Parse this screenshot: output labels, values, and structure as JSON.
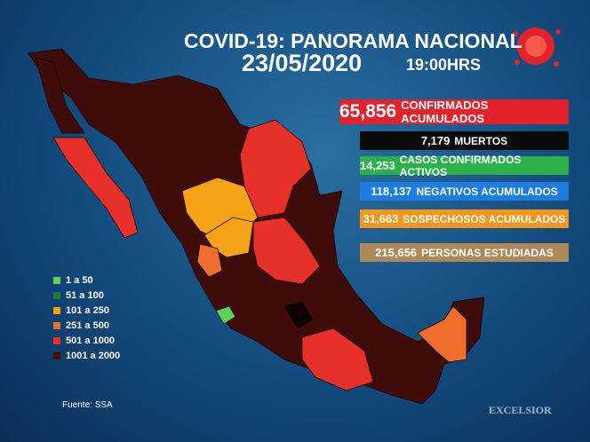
{
  "header": {
    "title": "COVID-19: PANORAMA NACIONAL",
    "date": "23/05/2020",
    "time": "19:00HRS"
  },
  "stats": [
    {
      "value": "65,856",
      "label": "CONFIRMADOS ACUMULADOS",
      "color": "#e3232b"
    },
    {
      "value": "7,179",
      "label": "MUERTOS",
      "color": "#0b0b0b"
    },
    {
      "value": "14,253",
      "label": "CASOS CONFIRMADOS ACTIVOS",
      "color": "#2bb04a"
    },
    {
      "value": "118,137",
      "label": "NEGATIVOS ACUMULADOS",
      "color": "#1c7ddf"
    },
    {
      "value": "31,663",
      "label": "SOSPECHOSOS ACUMULADOS",
      "color": "#f2961d"
    },
    {
      "value": "215,656",
      "label": "PERSONAS ESTUDIADAS",
      "color": "#ad8859"
    }
  ],
  "legend": [
    {
      "label": "1 a 50",
      "color": "#5ed15a"
    },
    {
      "label": "51 a 100",
      "color": "#1d7a3a"
    },
    {
      "label": "101 a 250",
      "color": "#f5a216"
    },
    {
      "label": "251 a 500",
      "color": "#ef6e2e"
    },
    {
      "label": "501 a 1000",
      "color": "#e8302a"
    },
    {
      "label": "1001 a 2000",
      "color": "#450d0d"
    }
  ],
  "source": "Fuente: SSA",
  "brand": "EXCELSIOR"
}
